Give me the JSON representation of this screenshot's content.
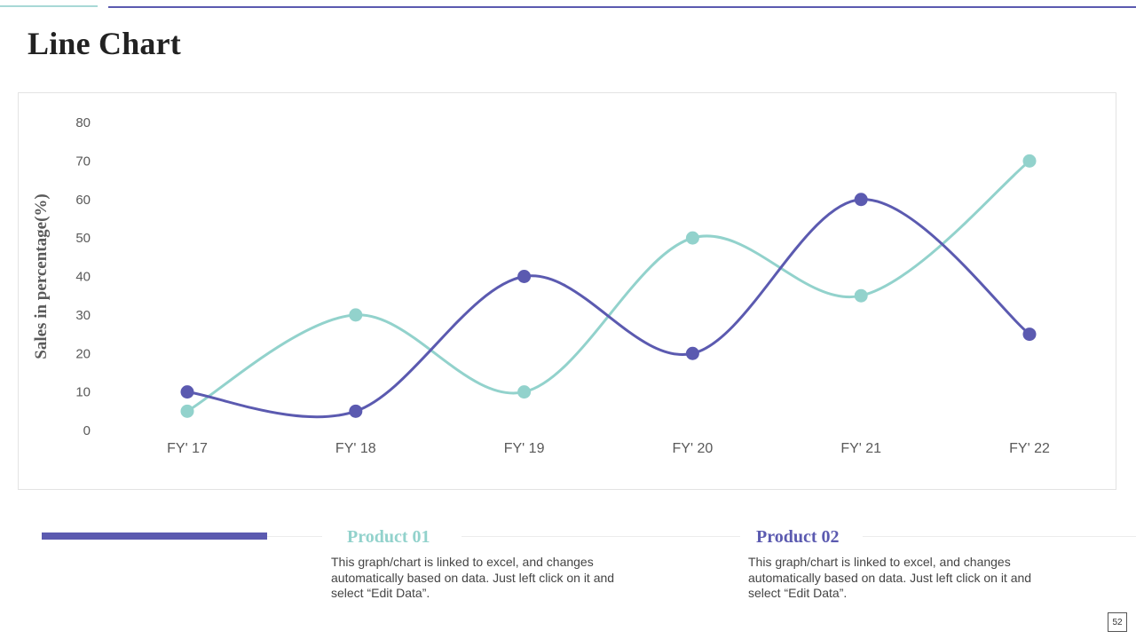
{
  "page": {
    "title": "Line Chart",
    "page_number": "52"
  },
  "chart_data": {
    "type": "line",
    "categories": [
      "FY' 17",
      "FY' 18",
      "FY' 19",
      "FY' 20",
      "FY' 21",
      "FY' 22"
    ],
    "series": [
      {
        "name": "Product 01",
        "color": "#92d2cc",
        "values": [
          5,
          30,
          10,
          50,
          35,
          70
        ]
      },
      {
        "name": "Product 02",
        "color": "#5b5ab0",
        "values": [
          10,
          5,
          40,
          20,
          60,
          25
        ]
      }
    ],
    "title": "",
    "xlabel": "",
    "ylabel": "Sales in percentage(%)",
    "ylim": [
      0,
      80
    ],
    "yticks": [
      0,
      10,
      20,
      30,
      40,
      50,
      60,
      70,
      80
    ],
    "grid": false,
    "smooth": true
  },
  "legend": [
    {
      "title": "Product 01",
      "color": "#92d2cc",
      "description": "This graph/chart is linked to excel, and changes automatically based on data. Just left click on it and select “Edit Data”."
    },
    {
      "title": "Product 02",
      "color": "#5b5ab0",
      "description": "This graph/chart is linked to excel, and changes automatically based on data. Just left click on it and select “Edit Data”."
    }
  ]
}
